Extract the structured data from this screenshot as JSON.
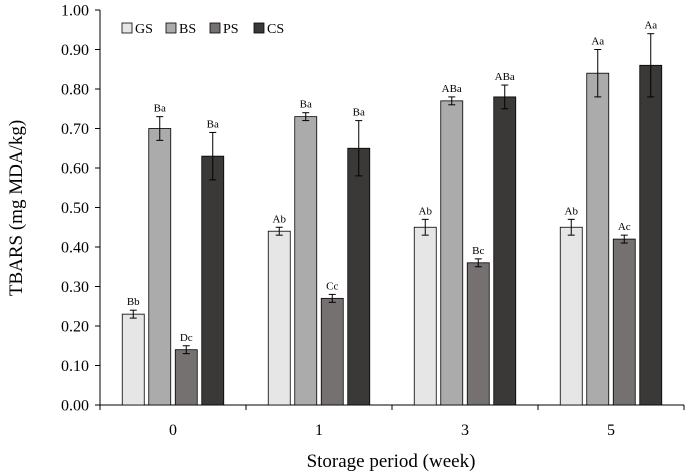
{
  "chart_data": {
    "type": "bar",
    "title": "",
    "xlabel": "Storage period (week)",
    "ylabel": "TBARS (mg MDA/kg)",
    "ylim": [
      0,
      1.0
    ],
    "y_ticks": [
      "0.00",
      "0.10",
      "0.20",
      "0.30",
      "0.40",
      "0.50",
      "0.60",
      "0.70",
      "0.80",
      "0.90",
      "1.00"
    ],
    "categories": [
      "0",
      "1",
      "3",
      "5"
    ],
    "legend_position": "top-left",
    "grid": false,
    "series": [
      {
        "name": "GS",
        "color": "#e6e6e6",
        "values": [
          0.23,
          0.44,
          0.45,
          0.45
        ],
        "errors": [
          0.01,
          0.01,
          0.02,
          0.02
        ],
        "labels": [
          "Bb",
          "Ab",
          "Ab",
          "Ab"
        ]
      },
      {
        "name": "BS",
        "color": "#ababab",
        "values": [
          0.7,
          0.73,
          0.77,
          0.84
        ],
        "errors": [
          0.03,
          0.01,
          0.01,
          0.06
        ],
        "labels": [
          "Ba",
          "Ba",
          "ABa",
          "Aa"
        ]
      },
      {
        "name": "PS",
        "color": "#767171",
        "values": [
          0.14,
          0.27,
          0.36,
          0.42
        ],
        "errors": [
          0.01,
          0.01,
          0.01,
          0.01
        ],
        "labels": [
          "Dc",
          "Cc",
          "Bc",
          "Ac"
        ]
      },
      {
        "name": "CS",
        "color": "#3b3838",
        "values": [
          0.63,
          0.65,
          0.78,
          0.86
        ],
        "errors": [
          0.06,
          0.07,
          0.03,
          0.08
        ],
        "labels": [
          "Ba",
          "Ba",
          "ABa",
          "Aa"
        ]
      }
    ]
  }
}
